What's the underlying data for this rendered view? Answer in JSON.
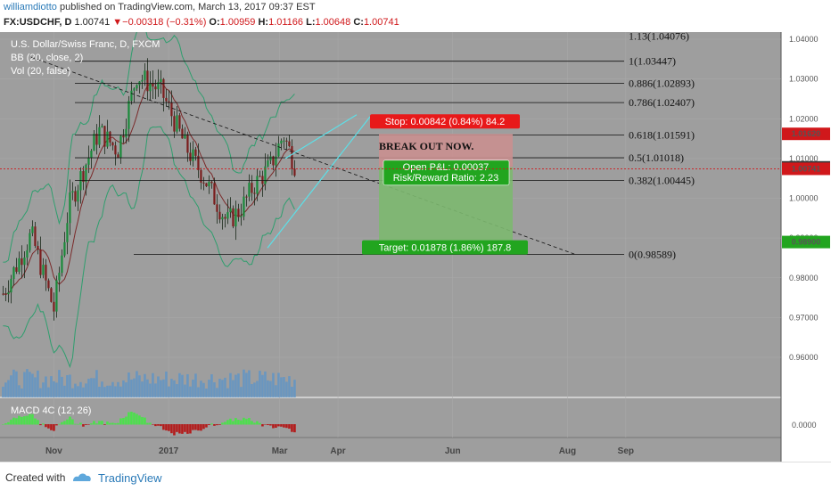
{
  "header": {
    "author": "williamdiotto",
    "published": " published on TradingView.com, March 13, 2017 09:37 EST",
    "symbol": "FX:USDCHF, D",
    "last": "1.00741",
    "arrow": "▼",
    "change": "−0.00318 (−0.31%)",
    "o_label": "O:",
    "o": "1.00959",
    "h_label": "H:",
    "h": "1.01166",
    "l_label": "L:",
    "l": "1.00648",
    "c_label": "C:",
    "c": "1.00741"
  },
  "legend": {
    "line1": "U.S. Dollar/Swiss Franc, D, FXCM",
    "line2": "BB (20, close, 2)",
    "line3": "Vol (20, false)",
    "macd": "MACD 4C (12, 26)"
  },
  "colors": {
    "background": "#9e9e9e",
    "up": "#1a8a3a",
    "down": "#7a1d1d",
    "bb": "#2f9e6e",
    "basis": "#7a2a2a",
    "stop": "#e8191a",
    "target": "#22a51f",
    "price_tag": "#d0181b"
  },
  "fib": [
    {
      "label": "1.13(1.04076)",
      "price": 1.04076
    },
    {
      "label": "1(1.03447)",
      "price": 1.03447
    },
    {
      "label": "0.886(1.02893)",
      "price": 1.02893
    },
    {
      "label": "0.786(1.02407)",
      "price": 1.02407
    },
    {
      "label": "0.618(1.01591)",
      "price": 1.01591
    },
    {
      "label": "0.5(1.01018)",
      "price": 1.01018
    },
    {
      "label": "0.382(1.00445)",
      "price": 1.00445
    },
    {
      "label": "0(0.98589)",
      "price": 0.98589
    }
  ],
  "position": {
    "stop_label": "Stop: 0.00842 (0.84%) 84.2",
    "note": "BREAK OUT NOW.",
    "pl_line1": "Open P&L: 0.00037",
    "pl_line2": "Risk/Reward Ratio: 2.23",
    "target_label": "Target: 0.01878 (1.86%) 187.8",
    "entry": 1.00778,
    "stop": 1.0162,
    "target": 0.989
  },
  "price_axis": {
    "ticks": [
      "1.04000",
      "1.03000",
      "1.02000",
      "1.01000",
      "1.00000",
      "0.99000",
      "0.98000",
      "0.97000",
      "0.96000"
    ],
    "tag_stop": "1.01620",
    "tag_entry": "1.00778",
    "tag_last": "1.00741",
    "tag_target": "0.98900"
  },
  "macd_axis": {
    "tick": "0.0000"
  },
  "time_axis": {
    "ticks": [
      "Nov",
      "2017",
      "Mar",
      "Apr",
      "Jun",
      "Aug",
      "Sep"
    ]
  },
  "footer": {
    "created": "Created with",
    "brand": "TradingView"
  },
  "chart_data": {
    "type": "candlestick",
    "title": "U.S. Dollar/Swiss Franc, D, FXCM",
    "ylim": [
      0.952,
      1.045
    ],
    "x": [
      "2016-10-05",
      "2016-10-20",
      "2016-11-01",
      "2016-11-09",
      "2016-11-25",
      "2016-12-05",
      "2016-12-15",
      "2016-12-28",
      "2017-01-10",
      "2017-01-20",
      "2017-02-01",
      "2017-02-08",
      "2017-02-15",
      "2017-02-24",
      "2017-03-03",
      "2017-03-10"
    ],
    "close_approx": [
      0.976,
      0.991,
      0.972,
      0.998,
      1.017,
      1.012,
      1.031,
      1.027,
      1.013,
      1.005,
      0.994,
      0.997,
      1.003,
      1.008,
      1.016,
      1.0074
    ],
    "high_annotated": 1.0345,
    "low_annotated": 0.9859,
    "forecast_line": {
      "from": "2016-10-20",
      "from_price": 1.0355,
      "to": "2017-08-05",
      "to_price": 0.9859
    }
  }
}
